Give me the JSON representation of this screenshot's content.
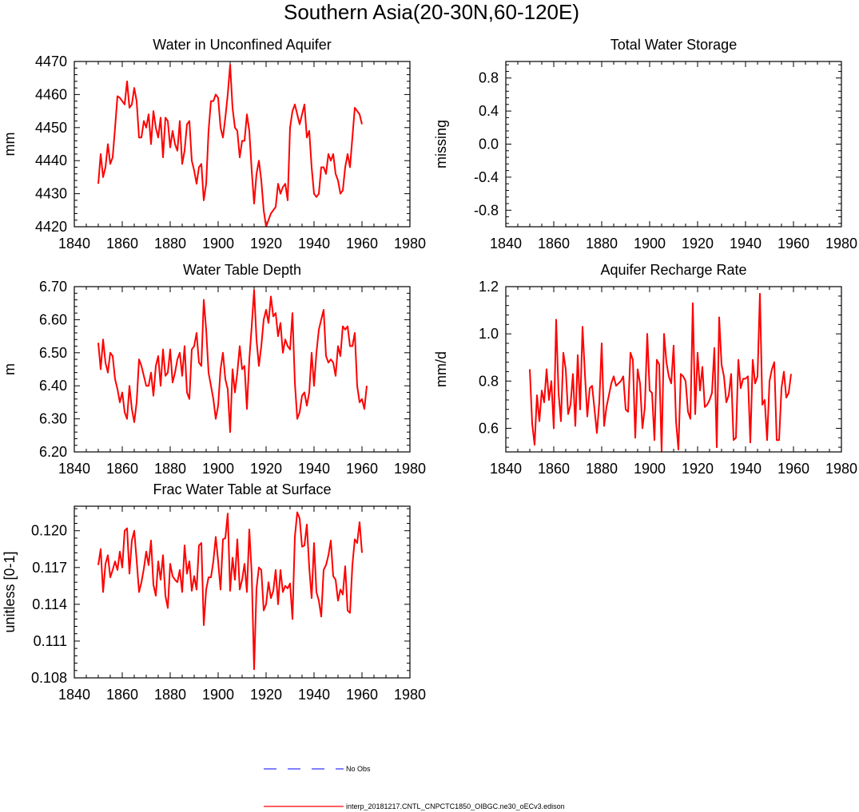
{
  "figure": {
    "title": "Southern Asia(20-30N,60-120E)"
  },
  "legend": {
    "obs_label": "No Obs",
    "obs_color": "#0000ff",
    "model_label": "interp_20181217.CNTL_CNPCTC1850_OIBGC.ne30_oECv3.edison",
    "model_color": "#ff0000"
  },
  "chart_data": [
    {
      "type": "line",
      "title": "Water in Unconfined Aquifer",
      "ylabel": "mm",
      "xlabel": "",
      "xlim": [
        1840,
        1980
      ],
      "ylim": [
        4420,
        4470
      ],
      "xticks": [
        "1840",
        "1860",
        "1880",
        "1900",
        "1920",
        "1940",
        "1960",
        "1980"
      ],
      "yticks": [
        "4420",
        "4430",
        "4440",
        "4450",
        "4460",
        "4470"
      ],
      "yticks_values": [
        4420,
        4430,
        4440,
        4450,
        4460,
        4470
      ],
      "x_start": 1850,
      "series": [
        {
          "name": "interp_20181217.CNTL_CNPCTC1850_OIBGC.ne30_oECv3.edison",
          "color": "#ff0000",
          "values": [
            4433,
            4442,
            4435,
            4438,
            4445,
            4439,
            4441,
            4450,
            4459.5,
            4459,
            4458,
            4457,
            4464,
            4456,
            4457,
            4462,
            4458,
            4447,
            4447,
            4452,
            4450,
            4454,
            4445,
            4455,
            4450,
            4447,
            4453,
            4441,
            4453,
            4452,
            4444,
            4449,
            4445,
            4443,
            4452,
            4439,
            4443,
            4451,
            4452,
            4440,
            4437,
            4433,
            4438,
            4439,
            4428,
            4433,
            4449,
            4458,
            4458,
            4460,
            4459,
            4450,
            4447,
            4453,
            4460,
            4469,
            4456,
            4450,
            4449,
            4441,
            4446,
            4446,
            4454,
            4449,
            4437,
            4427,
            4436,
            4440,
            4434,
            4425,
            4420,
            4422,
            4424,
            4425,
            4426,
            4433,
            4430,
            4432,
            4433,
            4428,
            4450,
            4455,
            4457,
            4454,
            4451,
            4454,
            4457,
            4447,
            4449,
            4438,
            4430,
            4429,
            4430,
            4438,
            4438,
            4436,
            4442,
            4440,
            4442,
            4436,
            4434,
            4430,
            4431,
            4438,
            4442,
            4438,
            4447,
            4456,
            4455,
            4454,
            4451
          ]
        }
      ]
    },
    {
      "type": "line",
      "title": "Total Water Storage",
      "ylabel": "missing",
      "xlabel": "",
      "xlim": [
        1840,
        1980
      ],
      "ylim": [
        -1.0,
        1.0
      ],
      "xticks": [
        "1840",
        "1860",
        "1880",
        "1900",
        "1920",
        "1940",
        "1960",
        "1980"
      ],
      "yticks": [
        "-0.8",
        "-0.4",
        "0.0",
        "0.4",
        "0.8"
      ],
      "yticks_values": [
        -0.8,
        -0.4,
        0.0,
        0.4,
        0.8
      ],
      "x_start": 1850,
      "series": []
    },
    {
      "type": "line",
      "title": "Water Table Depth",
      "ylabel": "m",
      "xlabel": "",
      "xlim": [
        1840,
        1980
      ],
      "ylim": [
        6.2,
        6.7
      ],
      "xticks": [
        "1840",
        "1860",
        "1880",
        "1900",
        "1920",
        "1940",
        "1960",
        "1980"
      ],
      "yticks": [
        "6.20",
        "6.30",
        "6.40",
        "6.50",
        "6.60",
        "6.70"
      ],
      "yticks_values": [
        6.2,
        6.3,
        6.4,
        6.5,
        6.6,
        6.7
      ],
      "x_start": 1850,
      "series": [
        {
          "name": "interp_20181217.CNTL_CNPCTC1850_OIBGC.ne30_oECv3.edison",
          "color": "#ff0000",
          "values": [
            6.53,
            6.45,
            6.54,
            6.47,
            6.44,
            6.5,
            6.49,
            6.42,
            6.39,
            6.35,
            6.38,
            6.32,
            6.3,
            6.4,
            6.33,
            6.29,
            6.35,
            6.48,
            6.46,
            6.43,
            6.4,
            6.4,
            6.44,
            6.37,
            6.46,
            6.49,
            6.4,
            6.51,
            6.43,
            6.44,
            6.51,
            6.41,
            6.44,
            6.48,
            6.5,
            6.43,
            6.52,
            6.38,
            6.36,
            6.51,
            6.52,
            6.56,
            6.47,
            6.46,
            6.66,
            6.57,
            6.44,
            6.4,
            6.36,
            6.3,
            6.34,
            6.45,
            6.5,
            6.42,
            6.39,
            6.26,
            6.45,
            6.38,
            6.44,
            6.52,
            6.45,
            6.46,
            6.33,
            6.48,
            6.58,
            6.69,
            6.54,
            6.46,
            6.52,
            6.6,
            6.63,
            6.59,
            6.67,
            6.61,
            6.62,
            6.55,
            6.59,
            6.5,
            6.54,
            6.52,
            6.51,
            6.62,
            6.41,
            6.3,
            6.32,
            6.37,
            6.38,
            6.34,
            6.38,
            6.5,
            6.4,
            6.5,
            6.57,
            6.6,
            6.63,
            6.49,
            6.47,
            6.48,
            6.47,
            6.43,
            6.52,
            6.49,
            6.58,
            6.57,
            6.58,
            6.52,
            6.52,
            6.56,
            6.4,
            6.35,
            6.36,
            6.33,
            6.4
          ]
        }
      ]
    },
    {
      "type": "line",
      "title": "Aquifer Recharge Rate",
      "ylabel": "mm/d",
      "xlabel": "",
      "xlim": [
        1840,
        1980
      ],
      "ylim": [
        0.5,
        1.2
      ],
      "xticks": [
        "1840",
        "1860",
        "1880",
        "1900",
        "1920",
        "1940",
        "1960",
        "1980"
      ],
      "yticks": [
        "0.6",
        "0.8",
        "1.0",
        "1.2"
      ],
      "yticks_values": [
        0.6,
        0.8,
        1.0,
        1.2
      ],
      "x_start": 1850,
      "series": [
        {
          "name": "interp_20181217.CNTL_CNPCTC1850_OIBGC.ne30_oECv3.edison",
          "color": "#ff0000",
          "values": [
            0.85,
            0.62,
            0.53,
            0.74,
            0.63,
            0.76,
            0.71,
            0.85,
            0.72,
            0.8,
            0.6,
            1.06,
            0.75,
            0.63,
            0.92,
            0.85,
            0.66,
            0.7,
            0.83,
            0.61,
            0.91,
            0.68,
            1.03,
            0.83,
            0.65,
            0.77,
            0.78,
            0.68,
            0.58,
            0.71,
            0.96,
            0.61,
            0.69,
            0.74,
            0.79,
            0.82,
            0.78,
            0.79,
            0.8,
            0.82,
            0.68,
            0.67,
            0.92,
            0.89,
            0.56,
            0.85,
            0.79,
            0.6,
            0.69,
            1.0,
            0.76,
            0.75,
            0.55,
            0.89,
            0.87,
            0.5,
            1.0,
            0.88,
            0.82,
            0.79,
            0.95,
            0.63,
            0.51,
            0.83,
            0.82,
            0.8,
            0.67,
            0.64,
            1.13,
            0.66,
            0.92,
            0.76,
            0.86,
            0.69,
            0.7,
            0.72,
            0.75,
            0.94,
            0.52,
            1.07,
            0.87,
            0.82,
            0.71,
            0.74,
            0.83,
            0.55,
            0.56,
            0.89,
            0.77,
            0.81,
            0.81,
            0.82,
            0.54,
            0.89,
            0.79,
            0.82,
            1.17,
            0.7,
            0.72,
            0.55,
            0.8,
            0.85,
            0.88,
            0.55,
            0.55,
            0.77,
            0.84,
            0.73,
            0.75,
            0.83
          ]
        }
      ]
    },
    {
      "type": "line",
      "title": "Frac Water Table at Surface",
      "ylabel": "unitless [0-1]",
      "xlabel": "",
      "xlim": [
        1840,
        1980
      ],
      "ylim": [
        0.108,
        0.122
      ],
      "xticks": [
        "1840",
        "1860",
        "1880",
        "1900",
        "1920",
        "1940",
        "1960",
        "1980"
      ],
      "yticks": [
        "0.108",
        "0.111",
        "0.114",
        "0.117",
        "0.120"
      ],
      "yticks_values": [
        0.108,
        0.111,
        0.114,
        0.117,
        0.12
      ],
      "x_start": 1850,
      "series": [
        {
          "name": "interp_20181217.CNTL_CNPCTC1850_OIBGC.ne30_oECv3.edison",
          "color": "#ff0000",
          "values": [
            0.1172,
            0.1185,
            0.115,
            0.1173,
            0.118,
            0.1162,
            0.1168,
            0.1175,
            0.1168,
            0.1183,
            0.117,
            0.12,
            0.1202,
            0.1165,
            0.1192,
            0.12,
            0.1176,
            0.115,
            0.1158,
            0.1169,
            0.1183,
            0.1172,
            0.1192,
            0.1156,
            0.1147,
            0.1175,
            0.116,
            0.118,
            0.1147,
            0.1137,
            0.1173,
            0.1163,
            0.116,
            0.1158,
            0.1168,
            0.115,
            0.1188,
            0.1165,
            0.1175,
            0.1151,
            0.1163,
            0.1152,
            0.1188,
            0.119,
            0.1123,
            0.1152,
            0.1162,
            0.1162,
            0.1175,
            0.1195,
            0.1175,
            0.1152,
            0.1193,
            0.1194,
            0.1214,
            0.1151,
            0.1178,
            0.116,
            0.1193,
            0.1152,
            0.116,
            0.1173,
            0.115,
            0.1201,
            0.1165,
            0.1087,
            0.1153,
            0.117,
            0.1168,
            0.1135,
            0.114,
            0.1158,
            0.1145,
            0.1151,
            0.1168,
            0.114,
            0.1168,
            0.115,
            0.1155,
            0.1153,
            0.1157,
            0.1128,
            0.1195,
            0.1215,
            0.121,
            0.1187,
            0.1188,
            0.1205,
            0.117,
            0.1145,
            0.119,
            0.115,
            0.1143,
            0.113,
            0.1168,
            0.1172,
            0.118,
            0.1192,
            0.1163,
            0.116,
            0.1143,
            0.1152,
            0.1148,
            0.1171,
            0.1135,
            0.1133,
            0.1172,
            0.1193,
            0.119,
            0.1207,
            0.1182
          ]
        }
      ]
    }
  ]
}
